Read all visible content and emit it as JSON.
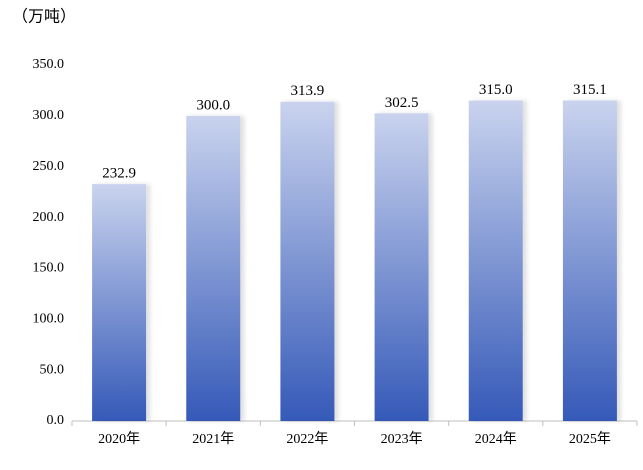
{
  "chart_data": {
    "type": "bar",
    "y_axis_label": "（万吨）",
    "categories": [
      "2020年",
      "2021年",
      "2022年",
      "2023年",
      "2024年",
      "2025年"
    ],
    "values": [
      232.9,
      300.0,
      313.9,
      302.5,
      315.0,
      315.1
    ],
    "value_labels": [
      "232.9",
      "300.0",
      "313.9",
      "302.5",
      "315.0",
      "315.1"
    ],
    "color": "#3559b8",
    "ylim": [
      0,
      350
    ],
    "yticks": [
      {
        "value": 0,
        "label": "0.0"
      },
      {
        "value": 50,
        "label": "50.0"
      },
      {
        "value": 100,
        "label": "100.0"
      },
      {
        "value": 150,
        "label": "150.0"
      },
      {
        "value": 200,
        "label": "200.0"
      },
      {
        "value": 250,
        "label": "250.0"
      },
      {
        "value": 300,
        "label": "300.0"
      },
      {
        "value": 350,
        "label": "350.0"
      }
    ],
    "grid": false
  }
}
